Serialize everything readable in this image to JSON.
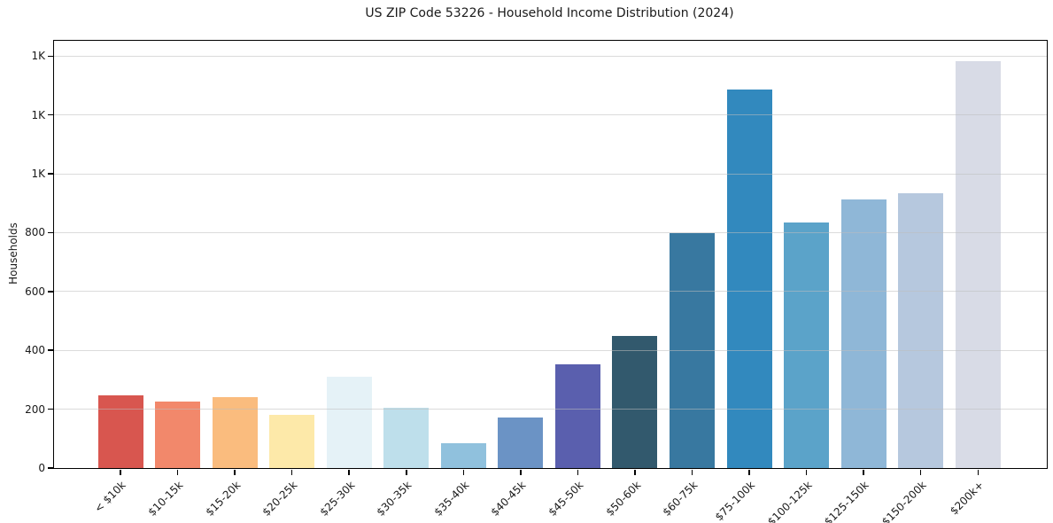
{
  "chart_data": {
    "type": "bar",
    "title": "US ZIP Code 53226 - Household Income Distribution (2024)",
    "xlabel": "",
    "ylabel": "Households",
    "categories": [
      "< $10k",
      "$10-15k",
      "$15-20k",
      "$20-25k",
      "$25-30k",
      "$30-35k",
      "$35-40k",
      "$40-45k",
      "$45-50k",
      "$50-60k",
      "$60-75k",
      "$75-100k",
      "$100-125k",
      "$125-150k",
      "$150-200k",
      "$200k+"
    ],
    "values": [
      246,
      225,
      241,
      181,
      310,
      206,
      86,
      171,
      352,
      448,
      797,
      1287,
      835,
      914,
      934,
      1382
    ],
    "bar_colors": [
      "#d8564f",
      "#f2886b",
      "#fabc7e",
      "#fde9a9",
      "#e5f2f7",
      "#bedfeb",
      "#90c1dd",
      "#6b93c5",
      "#5a5fae",
      "#32596d",
      "#3878a0",
      "#3289be",
      "#5ba3c9",
      "#8fb7d7",
      "#b6c8de",
      "#d8dbe6"
    ],
    "ylim": [
      0,
      1452
    ],
    "yticks": {
      "values": [
        0,
        200,
        400,
        600,
        800,
        1000,
        1200,
        1400
      ],
      "labels": [
        "0",
        "200",
        "400",
        "600",
        "800",
        "1K",
        "1K",
        "1K"
      ]
    },
    "grid": "horizontal-only",
    "legend": "none"
  },
  "colors": {
    "background": "#ffffff",
    "spine": "#000000",
    "grid": "#dddddd",
    "text": "#1a1a1a"
  }
}
